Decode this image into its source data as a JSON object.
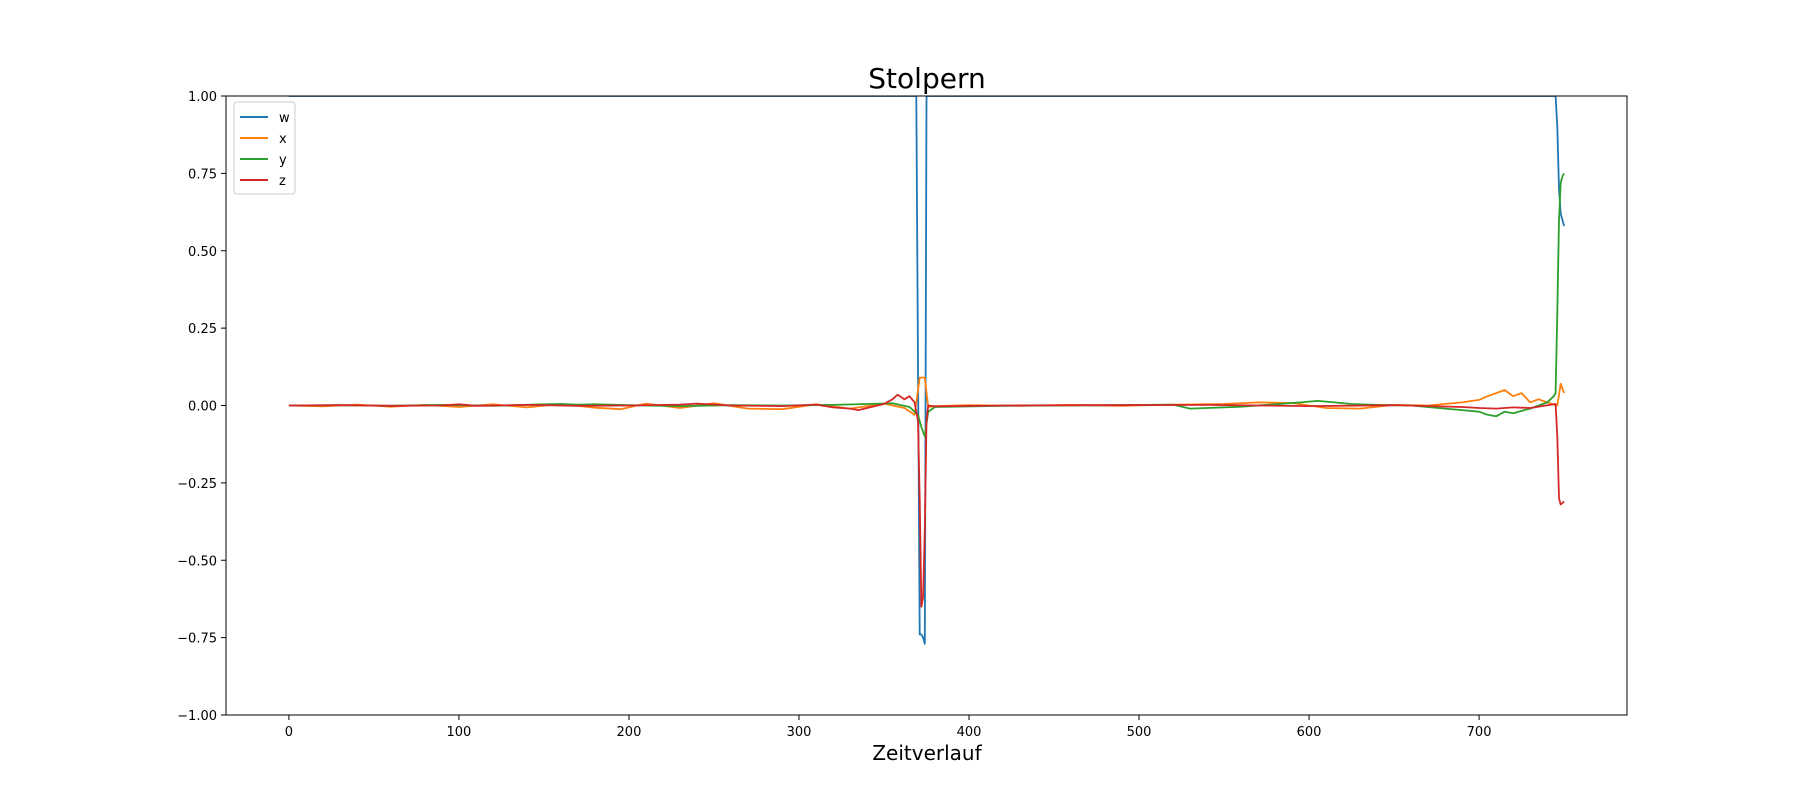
{
  "chart_data": {
    "type": "line",
    "title": "Stolpern",
    "xlabel": "Zeitverlauf",
    "ylabel": "",
    "xlim": [
      -37,
      787
    ],
    "ylim": [
      -1.0,
      1.0
    ],
    "xticks": [
      0,
      100,
      200,
      300,
      400,
      500,
      600,
      700
    ],
    "yticks": [
      -1.0,
      -0.75,
      -0.5,
      -0.25,
      0.0,
      0.25,
      0.5,
      0.75,
      1.0
    ],
    "ytick_labels": [
      "−1.00",
      "−0.75",
      "−0.50",
      "−0.25",
      "0.00",
      "0.25",
      "0.50",
      "0.75",
      "1.00"
    ],
    "grid": false,
    "legend_position": "upper-left",
    "series": [
      {
        "name": "w",
        "color": "#1f77b4",
        "x": [
          0,
          50,
          100,
          150,
          200,
          250,
          300,
          350,
          365,
          369,
          371,
          372,
          373,
          374,
          375,
          376,
          380,
          450,
          550,
          650,
          740,
          745,
          746,
          747,
          748,
          749,
          750
        ],
        "y": [
          1.0,
          1.0,
          1.0,
          1.0,
          1.0,
          1.0,
          1.0,
          1.0,
          1.0,
          1.0,
          -0.74,
          -0.74,
          -0.75,
          -0.77,
          1.0,
          1.0,
          1.0,
          1.0,
          1.0,
          1.0,
          1.0,
          1.0,
          0.9,
          0.7,
          0.62,
          0.6,
          0.58
        ]
      },
      {
        "name": "x",
        "color": "#ff7f0e",
        "x": [
          0,
          20,
          40,
          60,
          80,
          100,
          120,
          140,
          160,
          180,
          195,
          210,
          230,
          250,
          270,
          290,
          310,
          330,
          350,
          362,
          368,
          371,
          372,
          374,
          376,
          380,
          400,
          430,
          460,
          490,
          520,
          550,
          570,
          590,
          610,
          630,
          650,
          670,
          690,
          700,
          705,
          710,
          715,
          720,
          725,
          730,
          735,
          740,
          746,
          748,
          750
        ],
        "y": [
          0.0,
          -0.003,
          0.003,
          -0.004,
          0.002,
          -0.005,
          0.004,
          -0.006,
          0.005,
          -0.007,
          -0.012,
          0.006,
          -0.008,
          0.007,
          -0.01,
          -0.012,
          0.004,
          -0.01,
          0.006,
          -0.008,
          -0.03,
          0.09,
          0.09,
          0.09,
          -0.005,
          -0.002,
          0.001,
          -0.001,
          0.002,
          -0.001,
          0.003,
          0.005,
          0.01,
          0.008,
          -0.008,
          -0.01,
          0.002,
          0.0,
          0.01,
          0.018,
          0.03,
          0.04,
          0.05,
          0.03,
          0.04,
          0.01,
          0.02,
          0.01,
          0.0,
          0.07,
          0.04
        ]
      },
      {
        "name": "y",
        "color": "#2ca02c",
        "x": [
          0,
          30,
          60,
          90,
          120,
          150,
          160,
          170,
          180,
          200,
          230,
          260,
          290,
          320,
          340,
          355,
          365,
          370,
          372,
          374,
          376,
          380,
          420,
          480,
          520,
          530,
          540,
          560,
          580,
          595,
          605,
          615,
          625,
          640,
          660,
          680,
          690,
          700,
          705,
          710,
          715,
          720,
          730,
          740,
          744,
          745,
          746,
          747,
          748,
          749,
          750
        ],
        "y": [
          0.0,
          0.001,
          -0.001,
          0.002,
          -0.001,
          0.004,
          0.005,
          0.003,
          0.004,
          0.001,
          -0.002,
          0.001,
          0.0,
          0.002,
          0.005,
          0.007,
          -0.005,
          -0.03,
          -0.07,
          -0.1,
          -0.02,
          -0.005,
          -0.001,
          0.001,
          0.003,
          -0.01,
          -0.008,
          -0.004,
          0.004,
          0.01,
          0.015,
          0.01,
          0.005,
          0.002,
          0.0,
          -0.01,
          -0.015,
          -0.02,
          -0.03,
          -0.035,
          -0.02,
          -0.025,
          -0.01,
          0.01,
          0.03,
          0.04,
          0.3,
          0.6,
          0.72,
          0.74,
          0.75
        ]
      },
      {
        "name": "z",
        "color": "#d62728",
        "x": [
          0,
          30,
          60,
          90,
          100,
          110,
          140,
          170,
          200,
          230,
          240,
          260,
          290,
          310,
          320,
          330,
          335,
          340,
          350,
          355,
          358,
          362,
          365,
          368,
          370,
          371,
          372,
          373,
          374,
          375,
          376,
          380,
          420,
          480,
          540,
          600,
          650,
          690,
          700,
          710,
          720,
          730,
          745,
          746,
          747,
          748,
          749,
          750
        ],
        "y": [
          0.0,
          0.001,
          -0.001,
          0.0,
          0.004,
          -0.001,
          0.002,
          -0.001,
          0.0,
          0.003,
          0.006,
          0.0,
          -0.002,
          0.003,
          -0.006,
          -0.01,
          -0.015,
          -0.008,
          0.005,
          0.02,
          0.035,
          0.02,
          0.03,
          0.01,
          -0.05,
          -0.3,
          -0.65,
          -0.62,
          -0.4,
          -0.05,
          0.0,
          -0.003,
          0.0,
          0.001,
          0.002,
          -0.002,
          0.001,
          -0.005,
          -0.008,
          -0.01,
          -0.006,
          -0.008,
          0.005,
          -0.1,
          -0.3,
          -0.32,
          -0.315,
          -0.31
        ]
      }
    ]
  }
}
